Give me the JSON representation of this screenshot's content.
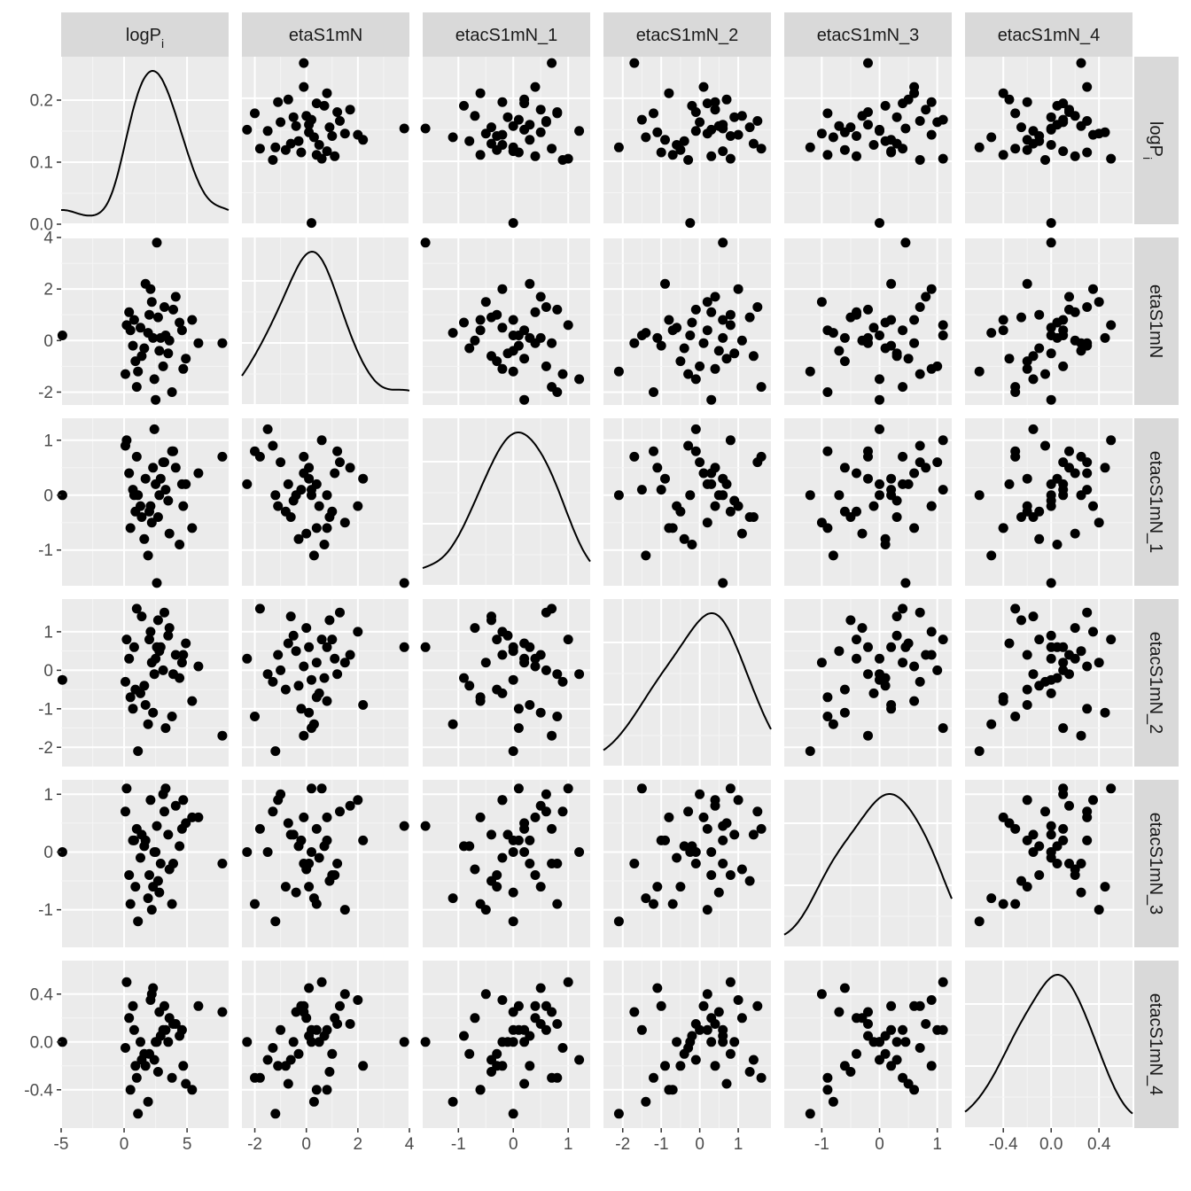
{
  "chart_data": {
    "type": "scatter-matrix",
    "variables": [
      {
        "label": "logP",
        "sub": "i",
        "range": [
          -5,
          8.3
        ],
        "ticks": [
          -5,
          0,
          5
        ],
        "tick_labels": [
          "-5",
          "0",
          "5"
        ]
      },
      {
        "label": "etaS1mN",
        "range": [
          -2.5,
          4
        ],
        "ticks": [
          -2,
          0,
          2,
          4
        ],
        "tick_labels": [
          "-2",
          "0",
          "2",
          "4"
        ]
      },
      {
        "label": "etacS1mN_1",
        "range": [
          -1.65,
          1.4
        ],
        "ticks": [
          -1,
          0,
          1
        ],
        "tick_labels": [
          "-1",
          "0",
          "1"
        ]
      },
      {
        "label": "etacS1mN_2",
        "range": [
          -2.5,
          1.85
        ],
        "ticks": [
          -2,
          -1,
          0,
          1
        ],
        "tick_labels": [
          "-2",
          "-1",
          "0",
          "1"
        ]
      },
      {
        "label": "etacS1mN_3",
        "range": [
          -1.65,
          1.25
        ],
        "ticks": [
          -1,
          0,
          1
        ],
        "tick_labels": [
          "-1",
          "0",
          "1"
        ]
      },
      {
        "label": "etacS1mN_4",
        "range": [
          -0.72,
          0.68
        ],
        "ticks": [
          -0.4,
          0.0,
          0.4
        ],
        "tick_labels": [
          "-0.4",
          "0.0",
          "0.4"
        ]
      }
    ],
    "density_y_axis": {
      "range": [
        0,
        0.27
      ],
      "ticks": [
        0.0,
        0.1,
        0.2
      ],
      "tick_labels": [
        "0.0",
        "0.1",
        "0.2"
      ]
    },
    "observations": [
      [
        -4.9,
        0.2,
        0.0,
        -0.25,
        0.0,
        0.0
      ],
      [
        7.8,
        -0.1,
        0.7,
        -1.7,
        -0.2,
        0.25
      ],
      [
        2.6,
        3.8,
        -1.6,
        0.6,
        0.45,
        0.0
      ],
      [
        0.2,
        0.6,
        1.0,
        0.8,
        1.1,
        0.5
      ],
      [
        1.1,
        -1.2,
        0.0,
        -2.1,
        -1.2,
        -0.6
      ],
      [
        3.2,
        1.3,
        0.6,
        1.5,
        0.7,
        0.3
      ],
      [
        0.9,
        -0.8,
        -0.3,
        -0.5,
        -0.6,
        -0.2
      ],
      [
        4.6,
        0.4,
        0.2,
        0.2,
        0.4,
        0.1
      ],
      [
        2.1,
        2.0,
        -0.2,
        1.0,
        0.9,
        0.35
      ],
      [
        3.8,
        -2.0,
        0.8,
        -1.2,
        -0.9,
        -0.3
      ],
      [
        1.6,
        -0.3,
        -0.8,
        -0.4,
        0.1,
        -0.1
      ],
      [
        2.9,
        0.1,
        0.3,
        0.6,
        -0.2,
        0.05
      ],
      [
        5.4,
        0.8,
        -0.6,
        -0.8,
        0.6,
        -0.4
      ],
      [
        0.4,
        1.1,
        0.4,
        0.3,
        -0.4,
        0.2
      ],
      [
        2.4,
        -1.5,
        1.2,
        -0.1,
        0.0,
        -0.15
      ],
      [
        3.5,
        -0.5,
        -0.1,
        0.9,
        0.3,
        0.0
      ],
      [
        1.9,
        0.3,
        -1.1,
        -1.4,
        -0.8,
        -0.5
      ],
      [
        4.1,
        1.7,
        0.5,
        0.4,
        0.8,
        0.15
      ],
      [
        0.7,
        -0.2,
        0.1,
        -1.0,
        0.2,
        0.3
      ],
      [
        2.7,
        0.9,
        -0.4,
        1.3,
        -0.5,
        -0.25
      ],
      [
        3.1,
        -1.0,
        0.6,
        0.0,
        1.0,
        0.1
      ],
      [
        1.3,
        0.5,
        -0.2,
        -0.6,
        -0.1,
        0.0
      ],
      [
        4.9,
        -0.7,
        0.2,
        0.7,
        0.5,
        -0.35
      ],
      [
        2.2,
        1.5,
        -0.5,
        0.2,
        -1.0,
        0.4
      ],
      [
        0.1,
        -1.3,
        0.9,
        -0.3,
        0.7,
        -0.05
      ],
      [
        3.6,
        0.0,
        -0.7,
        1.1,
        -0.3,
        0.2
      ],
      [
        1.7,
        2.2,
        0.3,
        -0.9,
        0.2,
        -0.2
      ],
      [
        2.8,
        -0.4,
        0.0,
        0.5,
        -0.7,
        0.25
      ],
      [
        4.4,
        0.7,
        -0.9,
        -0.2,
        0.1,
        0.05
      ],
      [
        1.0,
        -1.8,
        0.7,
        1.6,
        0.4,
        -0.3
      ],
      [
        3.3,
        0.2,
        0.1,
        -1.5,
        1.1,
        0.1
      ],
      [
        2.0,
        1.0,
        -0.3,
        0.8,
        -0.4,
        -0.1
      ],
      [
        5.9,
        -0.1,
        0.4,
        0.1,
        0.6,
        0.3
      ],
      [
        0.5,
        0.4,
        -0.6,
        -0.7,
        -0.9,
        -0.4
      ],
      [
        2.5,
        -2.3,
        0.2,
        0.3,
        0.0,
        0.0
      ],
      [
        3.9,
        1.2,
        0.8,
        -0.1,
        -0.2,
        0.15
      ],
      [
        1.4,
        -0.6,
        -0.4,
        1.4,
        0.3,
        -0.15
      ],
      [
        2.3,
        0.1,
        0.5,
        -1.1,
        -0.6,
        0.45
      ],
      [
        4.7,
        -1.1,
        -0.2,
        0.4,
        0.9,
        -0.2
      ],
      [
        0.8,
        0.8,
        0.0,
        0.6,
        0.2,
        0.1
      ]
    ]
  }
}
